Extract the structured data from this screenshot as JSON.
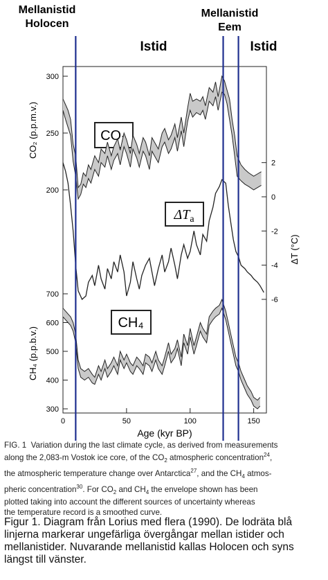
{
  "header": {
    "left_label_line1": "Mellanistid",
    "left_label_line2": "Holocen",
    "right_label_line1": "Mellanistid",
    "right_label_line2": "Eem",
    "istid_left": "Istid",
    "istid_right": "Istid"
  },
  "chart_data": {
    "type": "line",
    "xlabel": "Age (kyr BP)",
    "xlim": [
      0,
      160
    ],
    "x_ticks": [
      0,
      50,
      100,
      150
    ],
    "co2": {
      "label": "CO₂",
      "ylabel": "CO₂ (p.p.m.v.)",
      "ylim": [
        190,
        300
      ],
      "y_ticks": [
        200,
        250,
        300
      ],
      "x": [
        0,
        2,
        4,
        6,
        8,
        10,
        12,
        14,
        16,
        18,
        20,
        22,
        25,
        28,
        30,
        33,
        35,
        38,
        40,
        43,
        45,
        48,
        50,
        53,
        55,
        58,
        60,
        63,
        65,
        68,
        70,
        73,
        75,
        78,
        80,
        83,
        85,
        88,
        90,
        93,
        95,
        98,
        100,
        102,
        105,
        108,
        110,
        112,
        115,
        118,
        120,
        122,
        125,
        127,
        129,
        131,
        133,
        135,
        137,
        140,
        143,
        146,
        150,
        153,
        156
      ],
      "upper": [
        280,
        275,
        270,
        262,
        240,
        230,
        202,
        205,
        215,
        212,
        222,
        218,
        230,
        224,
        236,
        232,
        242,
        230,
        238,
        245,
        235,
        250,
        244,
        232,
        248,
        240,
        232,
        246,
        242,
        230,
        246,
        240,
        236,
        250,
        254,
        244,
        248,
        258,
        246,
        264,
        250,
        272,
        285,
        278,
        280,
        278,
        282,
        274,
        290,
        286,
        295,
        282,
        300,
        296,
        288,
        280,
        262,
        248,
        230,
        222,
        218,
        215,
        212,
        214,
        216
      ],
      "lower": [
        270,
        262,
        255,
        248,
        225,
        212,
        192,
        196,
        205,
        202,
        210,
        206,
        218,
        212,
        224,
        220,
        230,
        218,
        226,
        232,
        222,
        238,
        232,
        220,
        236,
        228,
        220,
        234,
        230,
        218,
        234,
        228,
        224,
        238,
        242,
        232,
        236,
        246,
        234,
        252,
        238,
        260,
        270,
        264,
        268,
        266,
        270,
        262,
        278,
        274,
        282,
        270,
        286,
        284,
        276,
        262,
        248,
        230,
        212,
        208,
        205,
        203,
        200,
        202,
        204
      ]
    },
    "temp": {
      "label": "ΔT",
      "label_sub": "a",
      "ylabel": "ΔT (°C)",
      "ylim": [
        -7,
        4
      ],
      "y_ticks": [
        2,
        0,
        -2,
        -4,
        -6
      ],
      "x": [
        0,
        2,
        4,
        6,
        8,
        10,
        12,
        15,
        18,
        20,
        23,
        25,
        28,
        30,
        33,
        35,
        38,
        40,
        43,
        45,
        48,
        50,
        53,
        55,
        58,
        60,
        62,
        65,
        68,
        70,
        72,
        75,
        78,
        80,
        83,
        85,
        88,
        90,
        93,
        95,
        98,
        100,
        103,
        105,
        108,
        110,
        113,
        115,
        118,
        120,
        123,
        125,
        128,
        130,
        132,
        134,
        136,
        138,
        140,
        143,
        145,
        148,
        150,
        153,
        155,
        158
      ],
      "values": [
        2.0,
        1.5,
        0.8,
        -0.5,
        -2.0,
        -4.0,
        -5.5,
        -6.0,
        -5.8,
        -5.0,
        -4.6,
        -5.2,
        -4.0,
        -4.8,
        -5.4,
        -4.2,
        -4.8,
        -3.8,
        -4.4,
        -3.4,
        -4.4,
        -5.8,
        -5.0,
        -3.8,
        -4.8,
        -5.4,
        -4.6,
        -4.0,
        -3.6,
        -4.4,
        -5.2,
        -4.2,
        -3.4,
        -4.4,
        -3.8,
        -3.0,
        -4.0,
        -4.8,
        -3.4,
        -2.8,
        -3.6,
        -3.2,
        -2.0,
        -2.8,
        -3.4,
        -2.2,
        -2.6,
        -1.4,
        -0.6,
        0.2,
        0.6,
        1.0,
        0.8,
        -0.5,
        -1.5,
        -2.5,
        -3.2,
        -3.5,
        -4.0,
        -4.2,
        -4.4,
        -4.6,
        -4.8,
        -5.0,
        -5.2,
        -5.6
      ]
    },
    "ch4": {
      "label": "CH₄",
      "ylabel": "CH₄ (p.p.b.v.)",
      "ylim": [
        300,
        700
      ],
      "y_ticks": [
        700,
        600,
        500,
        400,
        300
      ],
      "x": [
        0,
        2,
        4,
        6,
        8,
        10,
        12,
        14,
        17,
        20,
        23,
        25,
        28,
        30,
        33,
        35,
        38,
        40,
        43,
        45,
        48,
        50,
        53,
        55,
        58,
        60,
        63,
        65,
        68,
        70,
        73,
        75,
        78,
        80,
        83,
        85,
        88,
        90,
        93,
        95,
        98,
        100,
        103,
        105,
        108,
        110,
        113,
        115,
        118,
        120,
        123,
        125,
        128,
        130,
        132,
        134,
        136,
        138,
        140,
        143,
        145,
        148,
        150,
        153,
        155
      ],
      "upper": [
        650,
        640,
        630,
        620,
        600,
        560,
        470,
        440,
        430,
        440,
        420,
        410,
        450,
        430,
        470,
        440,
        460,
        480,
        450,
        500,
        470,
        490,
        460,
        450,
        480,
        470,
        450,
        490,
        480,
        460,
        500,
        470,
        450,
        480,
        530,
        490,
        510,
        540,
        480,
        560,
        520,
        580,
        520,
        550,
        600,
        580,
        560,
        620,
        640,
        650,
        660,
        680,
        640,
        600,
        560,
        520,
        480,
        460,
        430,
        400,
        380,
        360,
        340,
        330,
        340
      ],
      "lower": [
        620,
        610,
        600,
        590,
        570,
        530,
        440,
        410,
        400,
        410,
        390,
        385,
        420,
        400,
        440,
        410,
        430,
        450,
        420,
        470,
        440,
        460,
        430,
        420,
        450,
        440,
        420,
        460,
        450,
        430,
        470,
        440,
        420,
        450,
        500,
        460,
        480,
        510,
        450,
        530,
        490,
        550,
        490,
        520,
        570,
        550,
        530,
        590,
        610,
        620,
        630,
        650,
        610,
        570,
        530,
        490,
        450,
        430,
        400,
        370,
        350,
        330,
        310,
        300,
        310
      ]
    },
    "transitions_x": [
      10,
      126,
      138
    ]
  },
  "caption_fig": {
    "prefix": "FIG. 1",
    "line1": "Variation during the last climate cycle, as derived from measurements",
    "line2a": "along the 2,083-m Vostok ice core, of the CO",
    "line2b": "2",
    "line2c": " atmospheric concentration",
    "line2d": "24",
    "line2e": ",",
    "line3a": "the atmospheric temperature change over Antarctica",
    "line3b": "27",
    "line3c": ", and the CH",
    "line3d": "4",
    "line3e": " atmos-",
    "line4a": "pheric concentration",
    "line4b": "30",
    "line4c": ". For CO",
    "line4d": "2",
    "line4e": " and CH",
    "line4f": "4",
    "line4g": " the envelope shown has been",
    "line5": "plotted taking into account the different sources of uncertainty whereas",
    "line6": "the temperature record is a smoothed curve."
  },
  "caption_sv": "Figur 1. Diagram från Lorius med flera (1990). De lodräta blå linjerna markerar ungefärliga övergångar mellan istider och mellanistider. Nuvarande mellanistid kallas Holocen och syns längst till vänster."
}
